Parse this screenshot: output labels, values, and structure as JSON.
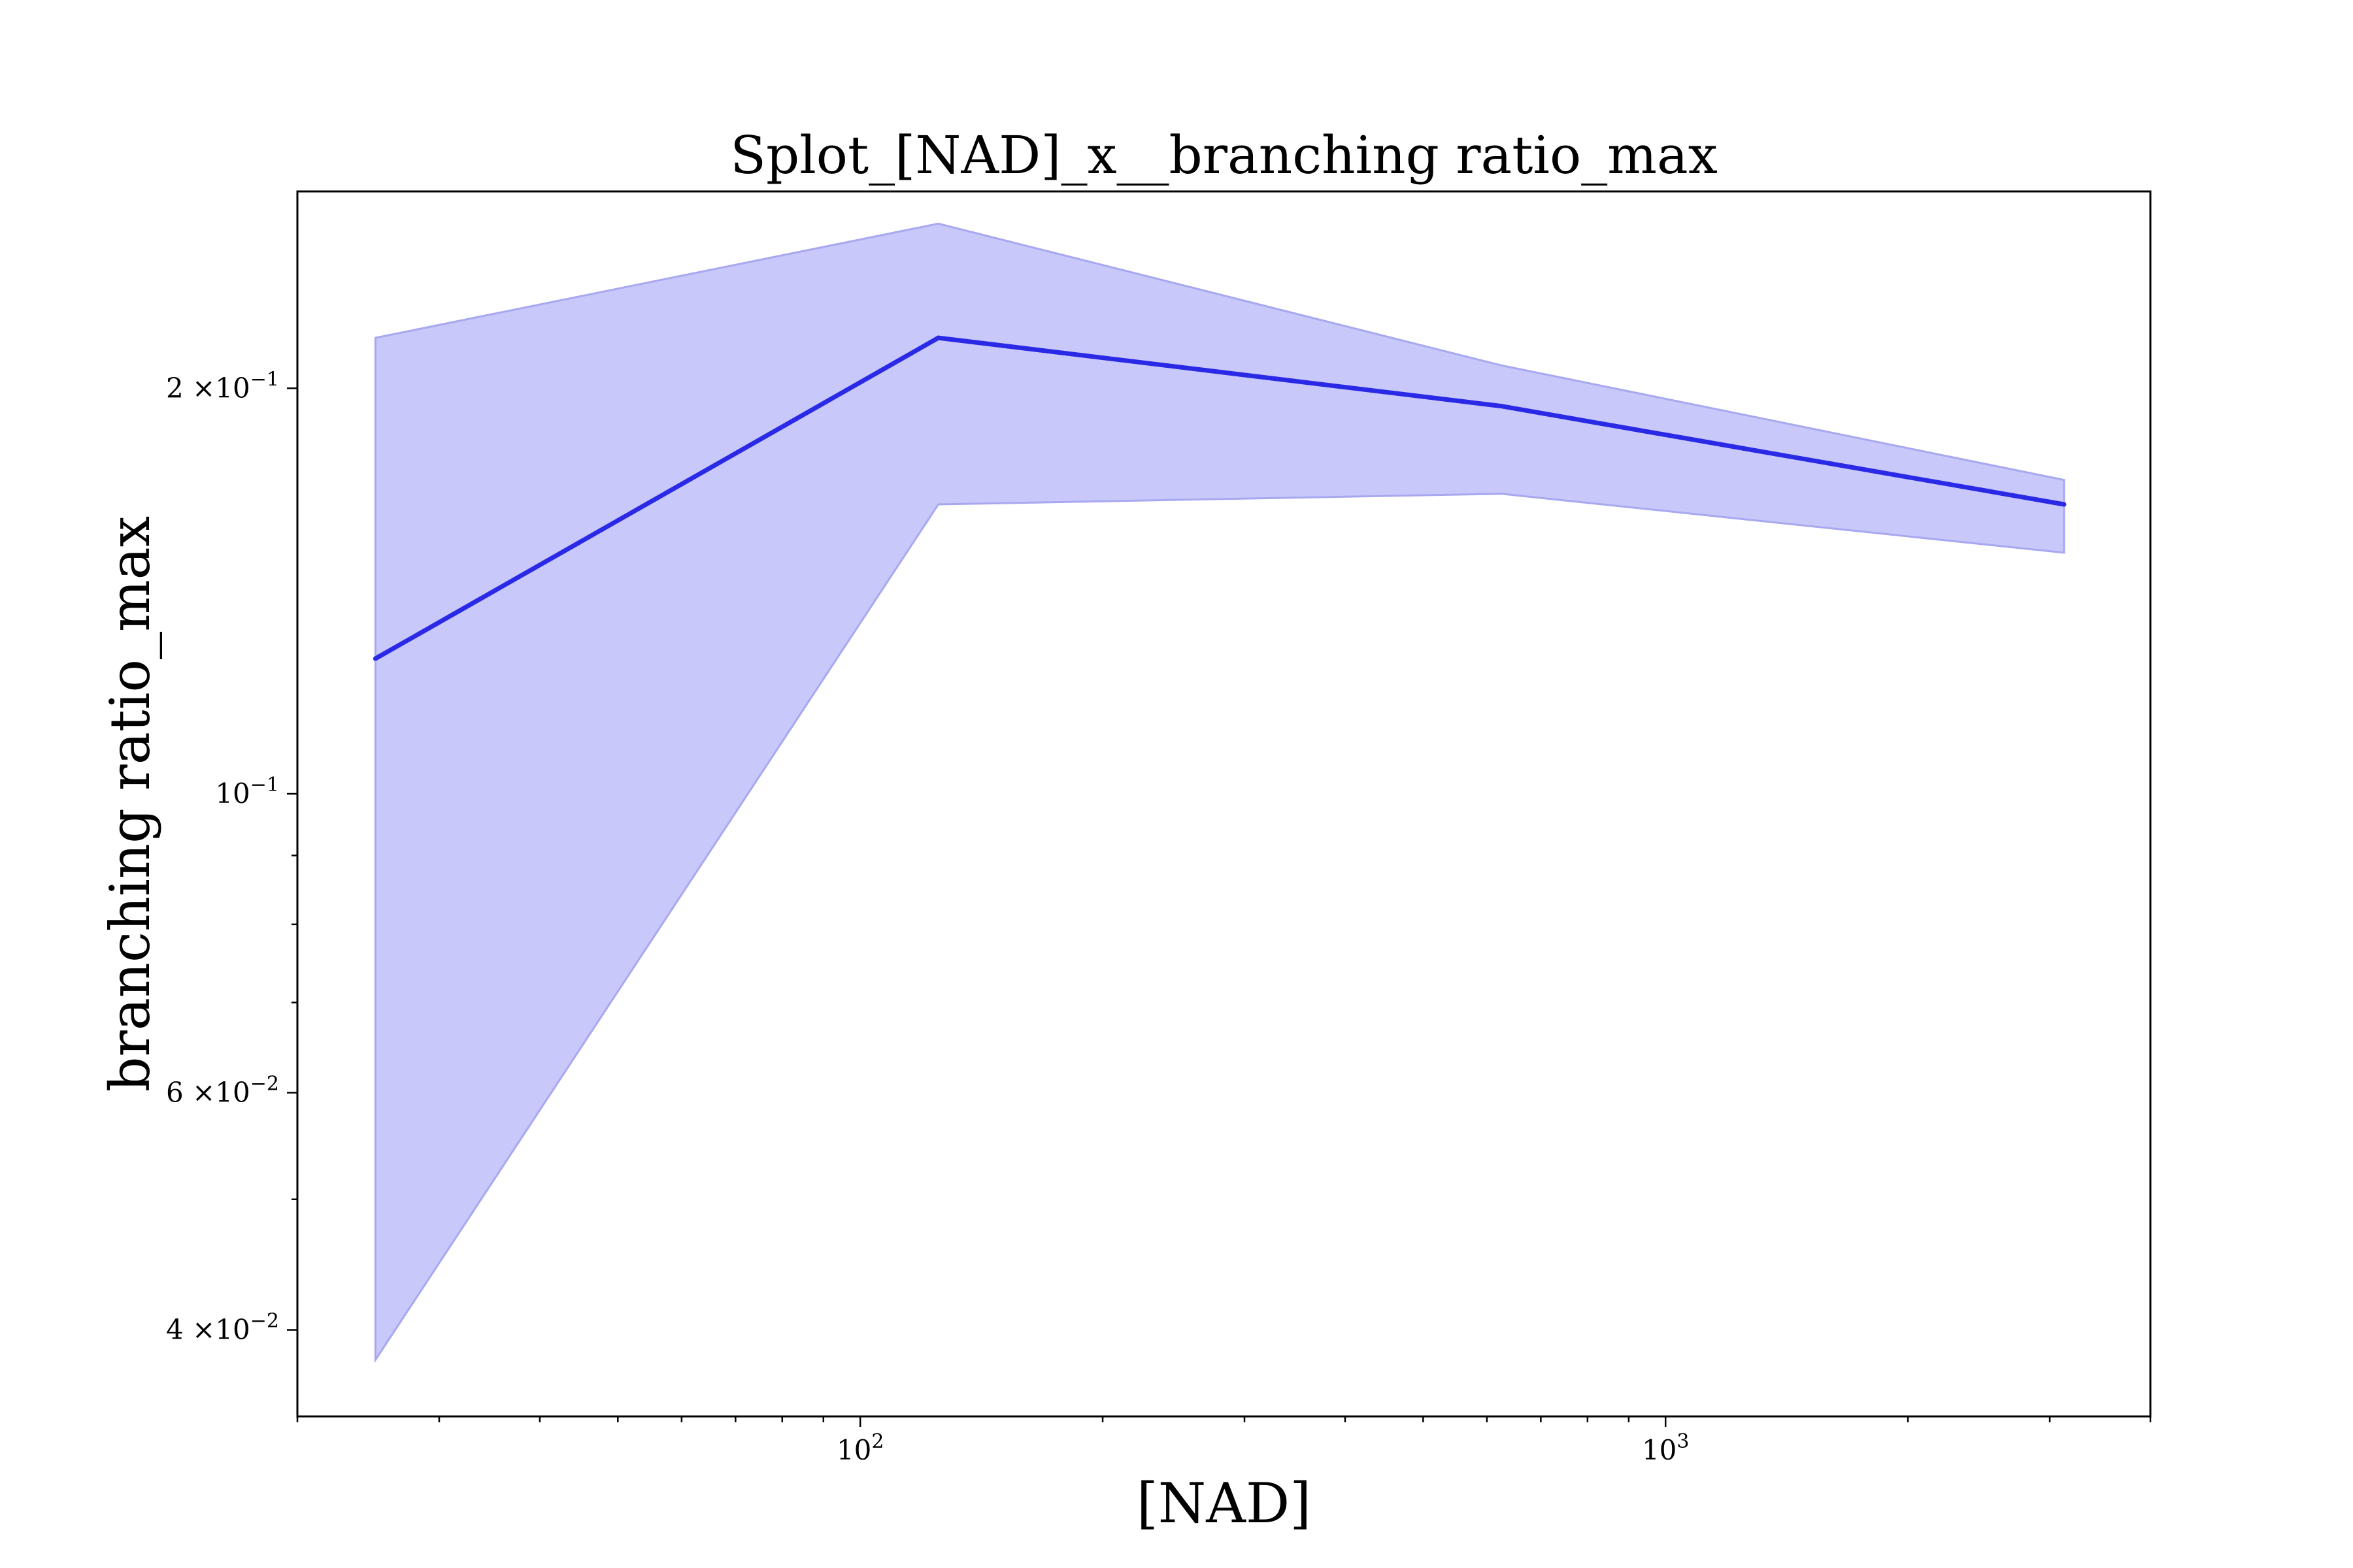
{
  "chart_data": {
    "type": "line",
    "title": "Splot_[NAD]_x__branching ratio_max",
    "xlabel": "[NAD]",
    "ylabel": "branching ratio_max",
    "x_scale": "log",
    "y_scale": "log",
    "xlim": [
      20,
      4000
    ],
    "ylim": [
      0.0345,
      0.28
    ],
    "grid": false,
    "legend": "none",
    "colors": {
      "line": "#2a2ae6",
      "band": "#c8c8fa",
      "band_edge": "#a8a8f0"
    },
    "x_ticks": [
      {
        "value": 100,
        "base": "10",
        "exp": "2"
      },
      {
        "value": 1000,
        "base": "10",
        "exp": "3"
      }
    ],
    "y_ticks": [
      {
        "value": 0.2,
        "mant": "2",
        "base": "×10",
        "exp": "−1"
      },
      {
        "value": 0.1,
        "mant": "",
        "base": "10",
        "exp": "−1"
      },
      {
        "value": 0.06,
        "mant": "6",
        "base": "×10",
        "exp": "−2"
      },
      {
        "value": 0.04,
        "mant": "4",
        "base": "×10",
        "exp": "−2"
      }
    ],
    "series": [
      {
        "x": [
          25,
          125,
          625,
          3125
        ],
        "y": [
          0.126,
          0.218,
          0.194,
          0.164
        ],
        "lower": [
          0.038,
          0.164,
          0.167,
          0.151
        ],
        "upper": [
          0.218,
          0.265,
          0.208,
          0.171
        ]
      }
    ]
  }
}
